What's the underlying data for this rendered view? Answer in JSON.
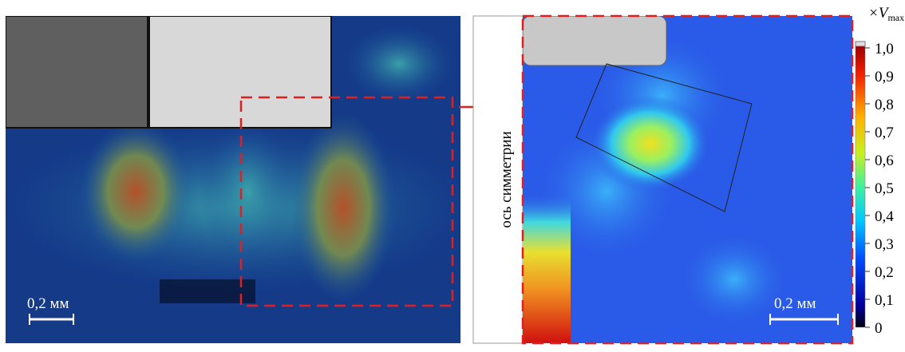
{
  "left_panel": {
    "scale_label": "0,2 мм"
  },
  "right_panel": {
    "axis_label": "ось симметрии",
    "scale_label": "0,2 мм"
  },
  "colorbar": {
    "title": "×V",
    "title_sub": "max",
    "ticks": [
      "1,0",
      "0,9",
      "0,8",
      "0,7",
      "0,6",
      "0,5",
      "0,4",
      "0,3",
      "0,2",
      "0,1",
      "0"
    ]
  }
}
